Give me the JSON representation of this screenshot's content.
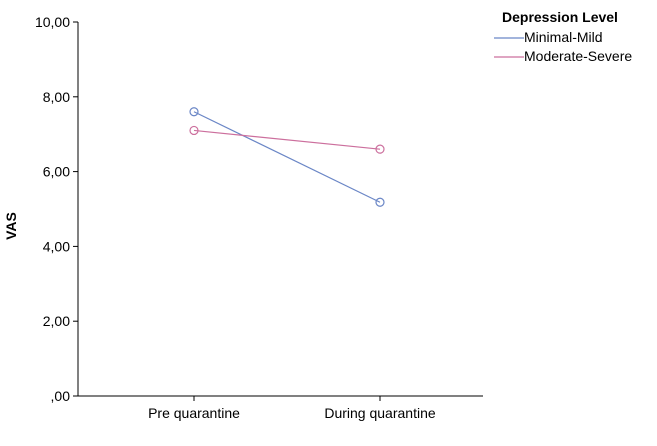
{
  "chart_data": {
    "type": "line",
    "categories": [
      "Pre quarantine",
      "During quarantine"
    ],
    "ylabel": "VAS",
    "xlabel": "",
    "ylim": [
      0,
      10
    ],
    "y_ticks": [
      ",00",
      "2,00",
      "4,00",
      "6,00",
      "8,00",
      "10,00"
    ],
    "grid": false,
    "legend": {
      "title": "Depression Level",
      "placement": "top-right, outside plot",
      "entries": [
        "Minimal-Mild",
        "Moderate-Severe"
      ]
    },
    "series": [
      {
        "name": "Minimal-Mild",
        "color": "#6a86c6",
        "values": [
          7.6,
          5.18
        ]
      },
      {
        "name": "Moderate-Severe",
        "color": "#cc6f9d",
        "values": [
          7.1,
          6.6
        ]
      }
    ]
  }
}
